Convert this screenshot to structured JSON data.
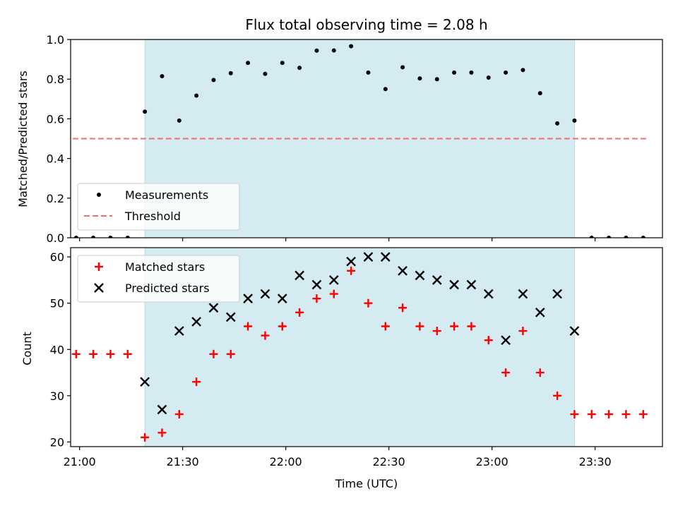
{
  "chart_data": [
    {
      "type": "scatter",
      "title": "Flux total observing time = 2.08 h",
      "ylabel": "Matched/Predicted stars",
      "xlabel": "",
      "ylim": [
        0,
        1.0
      ],
      "yticks": [
        0.0,
        0.2,
        0.4,
        0.6,
        0.8,
        1.0
      ],
      "ytick_labels": [
        "0.0",
        "0.2",
        "0.4",
        "0.6",
        "0.8",
        "1.0"
      ],
      "grid": false,
      "legend_position": "bottom-left",
      "shaded_region": {
        "x_start": "21:19",
        "x_end": "23:24",
        "color": "#d4ebf1"
      },
      "threshold": {
        "name": "Threshold",
        "y": 0.5,
        "x_start": "20:58",
        "x_end": "23:45",
        "color": "#f07070"
      },
      "series": [
        {
          "name": "Measurements",
          "color": "#000000",
          "marker": "dot",
          "points": [
            [
              "20:59",
              0.0
            ],
            [
              "21:04",
              0.0
            ],
            [
              "21:09",
              0.0
            ],
            [
              "21:14",
              0.0
            ],
            [
              "21:19",
              0.636
            ],
            [
              "21:24",
              0.815
            ],
            [
              "21:29",
              0.591
            ],
            [
              "21:34",
              0.717
            ],
            [
              "21:39",
              0.796
            ],
            [
              "21:44",
              0.83
            ],
            [
              "21:49",
              0.882
            ],
            [
              "21:54",
              0.827
            ],
            [
              "21:59",
              0.882
            ],
            [
              "22:04",
              0.857
            ],
            [
              "22:09",
              0.944
            ],
            [
              "22:14",
              0.945
            ],
            [
              "22:19",
              0.966
            ],
            [
              "22:24",
              0.833
            ],
            [
              "22:29",
              0.75
            ],
            [
              "22:34",
              0.86
            ],
            [
              "22:39",
              0.804
            ],
            [
              "22:44",
              0.8
            ],
            [
              "22:49",
              0.833
            ],
            [
              "22:54",
              0.833
            ],
            [
              "22:59",
              0.808
            ],
            [
              "23:04",
              0.833
            ],
            [
              "23:09",
              0.846
            ],
            [
              "23:14",
              0.729
            ],
            [
              "23:19",
              0.577
            ],
            [
              "23:24",
              0.591
            ],
            [
              "23:29",
              0.0
            ],
            [
              "23:34",
              0.0
            ],
            [
              "23:39",
              0.0
            ],
            [
              "23:44",
              0.0
            ]
          ]
        }
      ]
    },
    {
      "type": "scatter",
      "title": "",
      "ylabel": "Count",
      "xlabel": "Time (UTC)",
      "ylim": [
        19,
        62
      ],
      "yticks": [
        20,
        30,
        40,
        50,
        60
      ],
      "ytick_labels": [
        "20",
        "30",
        "40",
        "50",
        "60"
      ],
      "xticks": [
        "21:00",
        "21:30",
        "22:00",
        "22:30",
        "23:00",
        "23:30"
      ],
      "xtick_labels": [
        "21:00",
        "21:30",
        "22:00",
        "22:30",
        "23:00",
        "23:30"
      ],
      "grid": false,
      "legend_position": "top-left",
      "shaded_region": {
        "x_start": "21:19",
        "x_end": "23:24",
        "color": "#d4ebf1"
      },
      "series": [
        {
          "name": "Matched stars",
          "color": "#ff0000",
          "marker": "plus",
          "points": [
            [
              "20:59",
              39
            ],
            [
              "21:04",
              39
            ],
            [
              "21:09",
              39
            ],
            [
              "21:14",
              39
            ],
            [
              "21:19",
              21
            ],
            [
              "21:24",
              22
            ],
            [
              "21:29",
              26
            ],
            [
              "21:34",
              33
            ],
            [
              "21:39",
              39
            ],
            [
              "21:44",
              39
            ],
            [
              "21:49",
              45
            ],
            [
              "21:54",
              43
            ],
            [
              "21:59",
              45
            ],
            [
              "22:04",
              48
            ],
            [
              "22:09",
              51
            ],
            [
              "22:14",
              52
            ],
            [
              "22:19",
              57
            ],
            [
              "22:24",
              50
            ],
            [
              "22:29",
              45
            ],
            [
              "22:34",
              49
            ],
            [
              "22:39",
              45
            ],
            [
              "22:44",
              44
            ],
            [
              "22:49",
              45
            ],
            [
              "22:54",
              45
            ],
            [
              "22:59",
              42
            ],
            [
              "23:04",
              35
            ],
            [
              "23:09",
              44
            ],
            [
              "23:14",
              35
            ],
            [
              "23:19",
              30
            ],
            [
              "23:24",
              26
            ],
            [
              "23:29",
              26
            ],
            [
              "23:34",
              26
            ],
            [
              "23:39",
              26
            ],
            [
              "23:44",
              26
            ]
          ]
        },
        {
          "name": "Predicted stars",
          "color": "#000000",
          "marker": "x",
          "points": [
            [
              "21:19",
              33
            ],
            [
              "21:24",
              27
            ],
            [
              "21:29",
              44
            ],
            [
              "21:34",
              46
            ],
            [
              "21:39",
              49
            ],
            [
              "21:44",
              47
            ],
            [
              "21:49",
              51
            ],
            [
              "21:54",
              52
            ],
            [
              "21:59",
              51
            ],
            [
              "22:04",
              56
            ],
            [
              "22:09",
              54
            ],
            [
              "22:14",
              55
            ],
            [
              "22:19",
              59
            ],
            [
              "22:24",
              60
            ],
            [
              "22:29",
              60
            ],
            [
              "22:34",
              57
            ],
            [
              "22:39",
              56
            ],
            [
              "22:44",
              55
            ],
            [
              "22:49",
              54
            ],
            [
              "22:54",
              54
            ],
            [
              "22:59",
              52
            ],
            [
              "23:04",
              42
            ],
            [
              "23:09",
              52
            ],
            [
              "23:14",
              48
            ],
            [
              "23:19",
              52
            ],
            [
              "23:24",
              44
            ]
          ]
        }
      ]
    }
  ]
}
